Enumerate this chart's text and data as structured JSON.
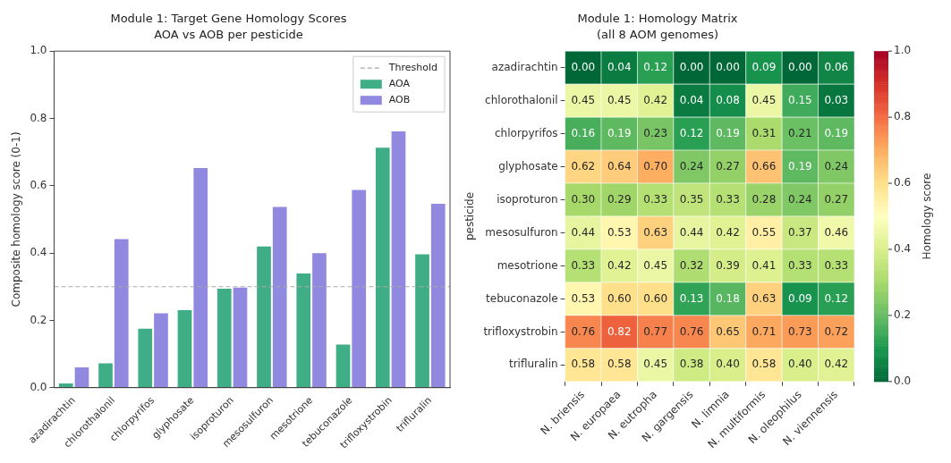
{
  "chart_data": [
    {
      "type": "bar",
      "title": "Module 1: Target Gene Homology Scores",
      "subtitle": "AOA vs AOB per pesticide",
      "ylabel": "Composite homology score (0-1)",
      "categories": [
        "azadirachtin",
        "chlorothalonil",
        "chlorpyrifos",
        "glyphosate",
        "isoproturon",
        "mesosulfuron",
        "mesotrione",
        "tebuconazole",
        "trifloxystrobin",
        "trifluralin"
      ],
      "series": [
        {
          "name": "AOA",
          "color": "#3fae86",
          "values": [
            0.015,
            0.075,
            0.178,
            0.233,
            0.297,
            0.422,
            0.342,
            0.131,
            0.716,
            0.399
          ]
        },
        {
          "name": "AOB",
          "color": "#9189e0",
          "values": [
            0.063,
            0.444,
            0.224,
            0.655,
            0.3,
            0.54,
            0.402,
            0.59,
            0.764,
            0.549
          ]
        }
      ],
      "ylim": [
        0,
        1
      ],
      "yticks": [
        {
          "value": 0,
          "label": "0.0"
        },
        {
          "value": 0.2,
          "label": "0.2"
        },
        {
          "value": 0.4,
          "label": "0.4"
        },
        {
          "value": 0.6,
          "label": "0.6"
        },
        {
          "value": 0.8,
          "label": "0.8"
        },
        {
          "value": 1,
          "label": "1.0"
        }
      ],
      "ref_lines": [
        {
          "axis": "y",
          "value": 0.3,
          "label": "Threshold",
          "color": "#aaaaaa",
          "line_style": "dashed"
        }
      ],
      "legend": "top right",
      "grid": false
    },
    {
      "type": "heatmap",
      "title": "Module 1: Homology Matrix",
      "subtitle": "(all 8 AOM genomes)",
      "ylabel": "pesticide",
      "clabel": "Homology score",
      "categories": [
        "N. briensis",
        "N. europaea",
        "N. eutropha",
        "N. gargensis",
        "N. limnia",
        "N. multiformis",
        "N. oleophilus",
        "N. viennensis"
      ],
      "y_categories": [
        "azadirachtin",
        "chlorothalonil",
        "chlorpyrifos",
        "glyphosate",
        "isoproturon",
        "mesosulfuron",
        "mesotrione",
        "tebuconazole",
        "trifloxystrobin",
        "trifluralin"
      ],
      "cells": [
        [
          0.0,
          0.04,
          0.12,
          0.0,
          0.0,
          0.09,
          0.0,
          0.06
        ],
        [
          0.45,
          0.45,
          0.42,
          0.04,
          0.08,
          0.45,
          0.15,
          0.03
        ],
        [
          0.16,
          0.19,
          0.23,
          0.12,
          0.19,
          0.31,
          0.21,
          0.19
        ],
        [
          0.62,
          0.64,
          0.7,
          0.24,
          0.27,
          0.66,
          0.19,
          0.24
        ],
        [
          0.3,
          0.29,
          0.33,
          0.35,
          0.33,
          0.28,
          0.24,
          0.27
        ],
        [
          0.44,
          0.53,
          0.63,
          0.44,
          0.42,
          0.55,
          0.37,
          0.46
        ],
        [
          0.33,
          0.42,
          0.45,
          0.32,
          0.39,
          0.41,
          0.33,
          0.33
        ],
        [
          0.53,
          0.6,
          0.6,
          0.13,
          0.18,
          0.63,
          0.09,
          0.12
        ],
        [
          0.76,
          0.82,
          0.77,
          0.76,
          0.65,
          0.71,
          0.73,
          0.72
        ],
        [
          0.58,
          0.58,
          0.45,
          0.38,
          0.4,
          0.58,
          0.4,
          0.42
        ]
      ],
      "cell_labels": [
        [
          "0.00",
          "0.04",
          "0.12",
          "0.00",
          "0.00",
          "0.09",
          "0.00",
          "0.06"
        ],
        [
          "0.45",
          "0.45",
          "0.42",
          "0.04",
          "0.08",
          "0.45",
          "0.15",
          "0.03"
        ],
        [
          "0.16",
          "0.19",
          "0.23",
          "0.12",
          "0.19",
          "0.31",
          "0.21",
          "0.19"
        ],
        [
          "0.62",
          "0.64",
          "0.70",
          "0.24",
          "0.27",
          "0.66",
          "0.19",
          "0.24"
        ],
        [
          "0.30",
          "0.29",
          "0.33",
          "0.35",
          "0.33",
          "0.28",
          "0.24",
          "0.27"
        ],
        [
          "0.44",
          "0.53",
          "0.63",
          "0.44",
          "0.42",
          "0.55",
          "0.37",
          "0.46"
        ],
        [
          "0.33",
          "0.42",
          "0.45",
          "0.32",
          "0.39",
          "0.41",
          "0.33",
          "0.33"
        ],
        [
          "0.53",
          "0.60",
          "0.60",
          "0.13",
          "0.18",
          "0.63",
          "0.09",
          "0.12"
        ],
        [
          "0.76",
          "0.82",
          "0.77",
          "0.76",
          "0.65",
          "0.71",
          "0.73",
          "0.72"
        ],
        [
          "0.58",
          "0.58",
          "0.45",
          "0.38",
          "0.40",
          "0.58",
          "0.40",
          "0.42"
        ]
      ],
      "clim": [
        0,
        1
      ],
      "cticks": [
        {
          "value": 0,
          "label": "0.0"
        },
        {
          "value": 0.2,
          "label": "0.2"
        },
        {
          "value": 0.4,
          "label": "0.4"
        },
        {
          "value": 0.6,
          "label": "0.6"
        },
        {
          "value": 0.8,
          "label": "0.8"
        },
        {
          "value": 1,
          "label": "1.0"
        }
      ],
      "data_labels": true
    }
  ]
}
